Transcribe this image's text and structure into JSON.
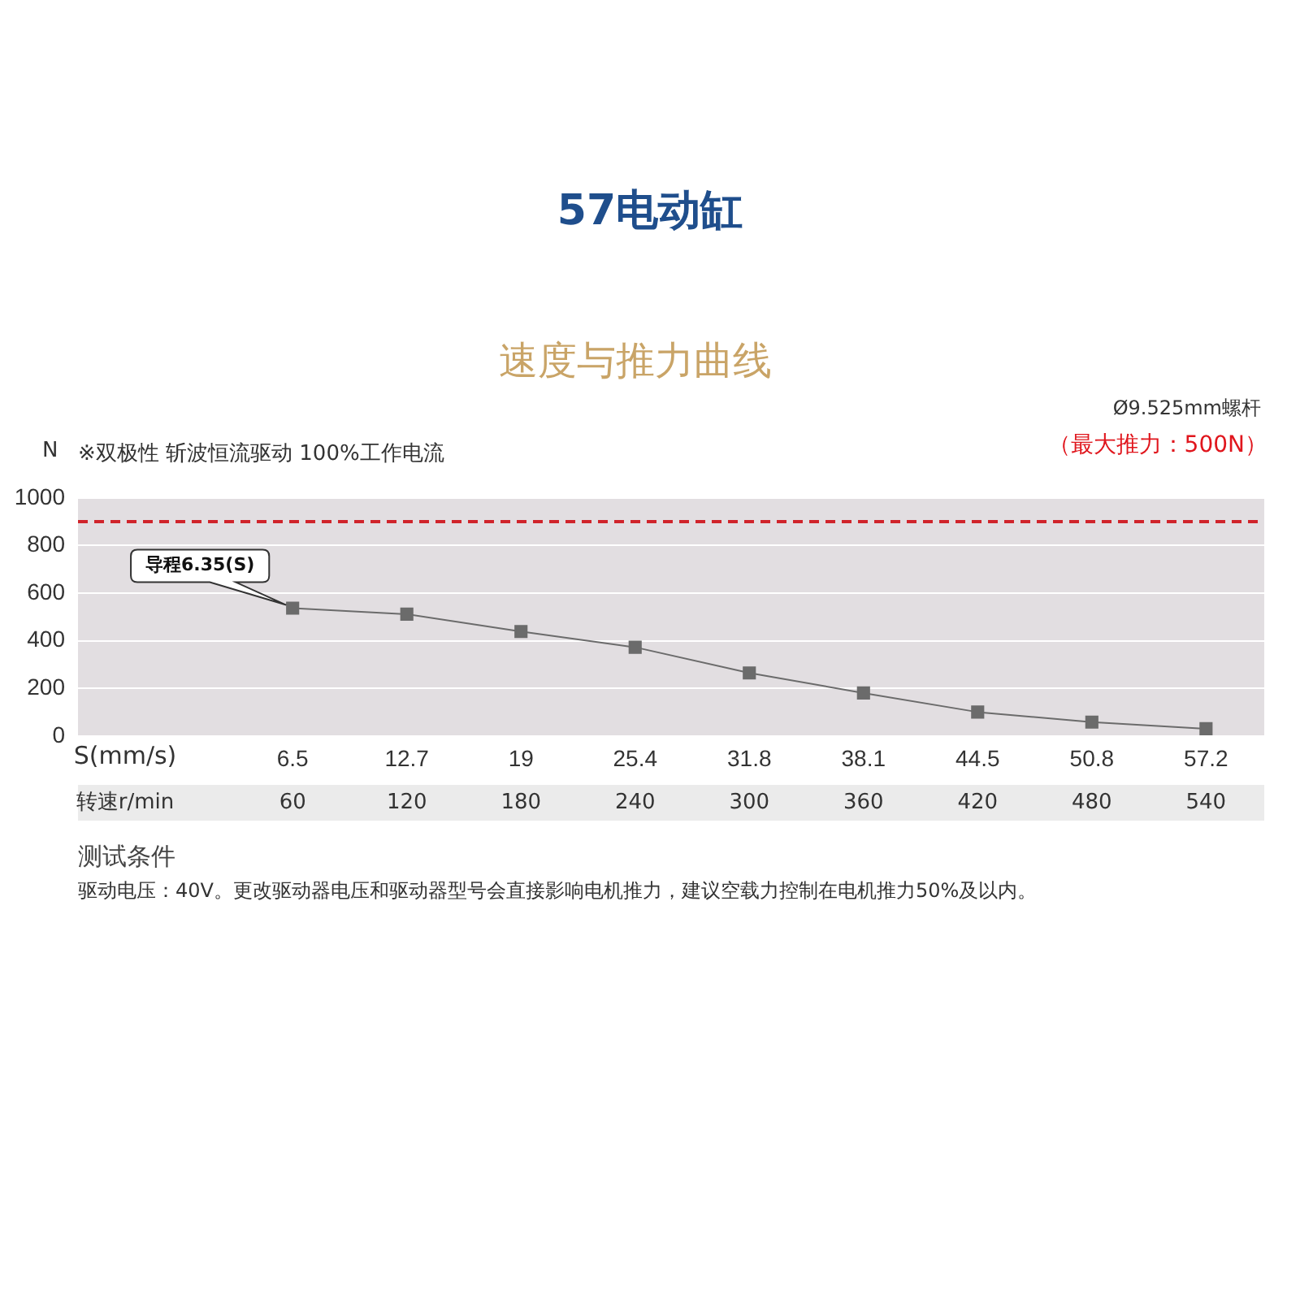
{
  "chart_data": {
    "type": "line",
    "title": "57电动缸",
    "subtitle": "速度与推力曲线",
    "ylabel": "N",
    "xlabel": "S(mm/s)",
    "categories": [
      "6.5",
      "12.7",
      "19",
      "25.4",
      "31.8",
      "38.1",
      "44.5",
      "50.8",
      "57.2"
    ],
    "series": [
      {
        "color": "#6b6b6b",
        "values": [
          537,
          512,
          439,
          373,
          265,
          181,
          101,
          59,
          31
        ]
      }
    ],
    "ylim": [
      0,
      1000
    ],
    "yticks": [
      0,
      200,
      400,
      600,
      800,
      1000
    ],
    "grid": "y",
    "legend": false,
    "marker": "square",
    "line_style": "solid",
    "ref_lines": [
      {
        "axis": "y",
        "value": 900,
        "color": "#d0242b",
        "line_style": "dashed"
      }
    ],
    "annotations": [
      "※双极性 斩波恒流驱动 100%工作电流",
      "Ø9.525mm螺杆",
      "（最大推力：500N）",
      "转速r/min",
      "测试条件",
      "驱动电压：40V。更改驱动器电压和驱动器型号会直接影响电机推力，建议空载力控制在电机推力50%及以内。",
      "60",
      "120",
      "180",
      "240",
      "300",
      "360",
      "420",
      "480",
      "540",
      {
        "text": "导程6.35(S)",
        "x": "6.5",
        "y": 537
      }
    ]
  }
}
